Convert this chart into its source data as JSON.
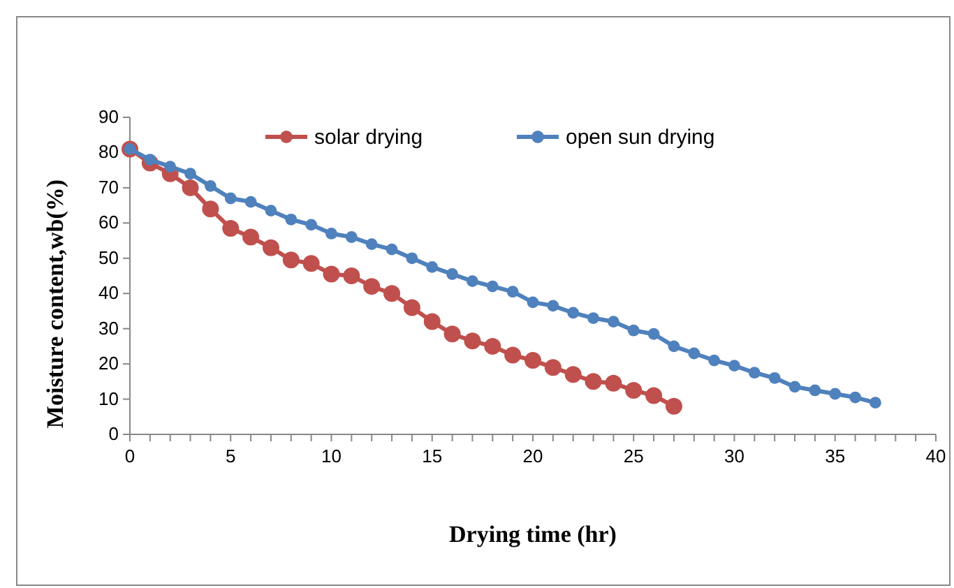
{
  "chart_data": {
    "type": "line",
    "xlabel": "Drying time (hr)",
    "ylabel": "Moisture content,wb(%)",
    "xlim": [
      0,
      40
    ],
    "ylim": [
      0,
      90
    ],
    "xticks": [
      0,
      {
        "value": 1,
        "label": null
      },
      {
        "value": 2,
        "label": null
      },
      {
        "value": 3,
        "label": null
      },
      {
        "value": 4,
        "label": null
      },
      5,
      {
        "value": 6,
        "label": null
      },
      {
        "value": 7,
        "label": null
      },
      {
        "value": 8,
        "label": null
      },
      {
        "value": 9,
        "label": null
      },
      10,
      {
        "value": 11,
        "label": null
      },
      {
        "value": 12,
        "label": null
      },
      {
        "value": 13,
        "label": null
      },
      {
        "value": 14,
        "label": null
      },
      15,
      {
        "value": 16,
        "label": null
      },
      {
        "value": 17,
        "label": null
      },
      {
        "value": 18,
        "label": null
      },
      {
        "value": 19,
        "label": null
      },
      20,
      {
        "value": 21,
        "label": null
      },
      {
        "value": 22,
        "label": null
      },
      {
        "value": 23,
        "label": null
      },
      {
        "value": 24,
        "label": null
      },
      25,
      {
        "value": 26,
        "label": null
      },
      {
        "value": 27,
        "label": null
      },
      {
        "value": 28,
        "label": null
      },
      {
        "value": 29,
        "label": null
      },
      30,
      {
        "value": 31,
        "label": null
      },
      {
        "value": 32,
        "label": null
      },
      {
        "value": 33,
        "label": null
      },
      {
        "value": 34,
        "label": null
      },
      35,
      {
        "value": 36,
        "label": null
      },
      {
        "value": 37,
        "label": null
      },
      {
        "value": 38,
        "label": null
      },
      {
        "value": 39,
        "label": null
      },
      40
    ],
    "yticks": [
      0,
      10,
      20,
      30,
      40,
      50,
      60,
      70,
      80,
      90
    ],
    "grid": false,
    "legend": "top",
    "marker": "circle",
    "line_style": "solid",
    "series": [
      {
        "name": "solar drying",
        "color": "#c0504d",
        "x": [
          0,
          1,
          2,
          3,
          4,
          5,
          6,
          7,
          8,
          9,
          10,
          11,
          12,
          13,
          14,
          15,
          16,
          17,
          18,
          19,
          20,
          21,
          22,
          23,
          24,
          25,
          26,
          27
        ],
        "values": [
          81,
          77,
          74,
          70,
          64,
          58.5,
          56,
          53,
          49.5,
          48.5,
          45.5,
          45,
          42,
          40,
          36,
          32,
          28.5,
          26.5,
          25,
          22.5,
          21,
          19,
          17,
          15,
          14.5,
          12.5,
          11,
          8
        ]
      },
      {
        "name": "open sun drying",
        "color": "#4f81bd",
        "x": [
          0,
          1,
          2,
          3,
          4,
          5,
          6,
          7,
          8,
          9,
          10,
          11,
          12,
          13,
          14,
          15,
          16,
          17,
          18,
          19,
          20,
          21,
          22,
          23,
          24,
          25,
          26,
          27,
          28,
          29,
          30,
          31,
          32,
          33,
          34,
          35,
          36,
          37
        ],
        "values": [
          81,
          78,
          76,
          74,
          70.5,
          67,
          66,
          63.5,
          61,
          59.5,
          57,
          56,
          54,
          52.5,
          50,
          47.5,
          45.5,
          43.5,
          42,
          40.5,
          37.5,
          36.5,
          34.5,
          33,
          32,
          29.5,
          28.5,
          25,
          23,
          21,
          19.5,
          17.5,
          16,
          13.5,
          12.5,
          11.5,
          10.5,
          9
        ]
      }
    ]
  }
}
